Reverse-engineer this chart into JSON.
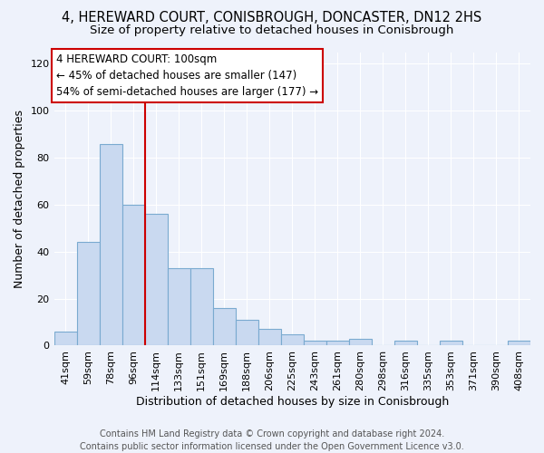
{
  "title": "4, HEREWARD COURT, CONISBROUGH, DONCASTER, DN12 2HS",
  "subtitle": "Size of property relative to detached houses in Conisbrough",
  "xlabel": "Distribution of detached houses by size in Conisbrough",
  "ylabel": "Number of detached properties",
  "categories": [
    "41sqm",
    "59sqm",
    "78sqm",
    "96sqm",
    "114sqm",
    "133sqm",
    "151sqm",
    "169sqm",
    "188sqm",
    "206sqm",
    "225sqm",
    "243sqm",
    "261sqm",
    "280sqm",
    "298sqm",
    "316sqm",
    "335sqm",
    "353sqm",
    "371sqm",
    "390sqm",
    "408sqm"
  ],
  "values": [
    6,
    44,
    86,
    60,
    56,
    33,
    33,
    16,
    11,
    7,
    5,
    2,
    2,
    3,
    0,
    2,
    0,
    2,
    0,
    0,
    2
  ],
  "bar_color": "#c9d9f0",
  "bar_edge_color": "#7aaad0",
  "background_color": "#eef2fb",
  "grid_color": "#ffffff",
  "vline_x": 3.5,
  "vline_color": "#cc0000",
  "annotation_line1": "4 HEREWARD COURT: 100sqm",
  "annotation_line2": "← 45% of detached houses are smaller (147)",
  "annotation_line3": "54% of semi-detached houses are larger (177) →",
  "annotation_box_color": "#ffffff",
  "annotation_edge_color": "#cc0000",
  "ylim": [
    0,
    125
  ],
  "yticks": [
    0,
    20,
    40,
    60,
    80,
    100,
    120
  ],
  "footer_line1": "Contains HM Land Registry data © Crown copyright and database right 2024.",
  "footer_line2": "Contains public sector information licensed under the Open Government Licence v3.0.",
  "title_fontsize": 10.5,
  "subtitle_fontsize": 9.5,
  "xlabel_fontsize": 9,
  "ylabel_fontsize": 9,
  "tick_fontsize": 8,
  "annotation_fontsize": 8.5,
  "footer_fontsize": 7
}
